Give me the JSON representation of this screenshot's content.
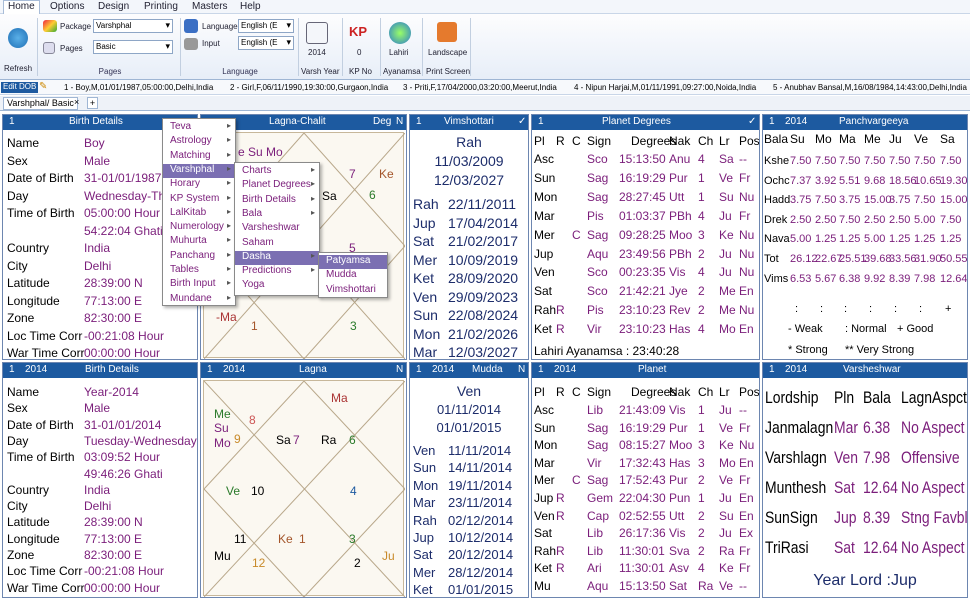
{
  "menu": {
    "items": [
      "Home",
      "Options",
      "Design",
      "Printing",
      "Masters",
      "Help"
    ]
  },
  "ribbon": {
    "refresh_label": "Refresh",
    "package_label": "Package",
    "package_value": "Varshphal",
    "pages_label": "Pages",
    "pages_value": "Basic",
    "pages_group": "Pages",
    "language_label": "Language",
    "language_value": "English (E",
    "input_label": "Input",
    "input_value": "English (E",
    "language_group": "Language",
    "year_value": "2014",
    "year_label": "Varsh Year",
    "kp_value": "0",
    "kp_label": "KP No",
    "ayanamsa_value": "Lahiri",
    "ayanamsa_label": "Ayanamsa",
    "landscape_label": "Landscape",
    "print_label": "Print Screen",
    "kp_icon_text": "KP"
  },
  "recent": {
    "edit_dob": "Edit DOB",
    "entries": [
      "1 - Boy,M,01/01/1987,05:00:00,Delhi,India",
      "2 - Girl,F,06/11/1990,19:30:00,Gurgaon,India",
      "3 - Priti,F,17/04/2000,03:20:00,Meerut,India",
      "4 - Nipun Harjai,M,01/11/1991,09:27:00,Noida,India",
      "5 - Anubhav Bansal,M,16/08/1984,14:43:00,Delhi,India"
    ]
  },
  "tabs": {
    "active": "Varshphal/ Basic",
    "close": "×",
    "add": "+"
  },
  "birth1": {
    "num": "1",
    "title": "Birth Details",
    "rows": [
      {
        "l": "Name",
        "v": "Boy"
      },
      {
        "l": "Sex",
        "v": "Male"
      },
      {
        "l": "Date of Birth",
        "v": "31-01/01/1987"
      },
      {
        "l": "Day",
        "v": "Wednesday-Th"
      },
      {
        "l": "Time of Birth",
        "v": "05:00:00 Hour"
      },
      {
        "l": "",
        "v": "54:22:04 Ghati"
      },
      {
        "l": "Country",
        "v": "India"
      },
      {
        "l": "City",
        "v": "Delhi"
      },
      {
        "l": "Latitude",
        "v": "28:39:00 N"
      },
      {
        "l": "Longitude",
        "v": "77:13:00 E"
      },
      {
        "l": "Zone",
        "v": "82:30:00 E"
      },
      {
        "l": "Loc Time Corr",
        "v": "-00:21:08 Hour"
      },
      {
        "l": "War Time Corr",
        "v": "00:00:00 Hour"
      }
    ]
  },
  "lagna_chalit": {
    "title": "Lagna-Chalit",
    "deg": "Deg",
    "n": "N",
    "planets_top": "e Su Mo",
    "h7": "7",
    "h6": "6",
    "ke": "Ke",
    "sa": "Sa",
    "h5": "5",
    "ma": "-Ma",
    "h1": "1",
    "h3": "3"
  },
  "vimshottari": {
    "num": "1",
    "title": "Vimshottari",
    "check": "✓",
    "head": "Rah",
    "from": "11/03/2009",
    "to": "12/03/2027",
    "rows": [
      [
        "Rah",
        "22/11/2011"
      ],
      [
        "Jup",
        "17/04/2014"
      ],
      [
        "Sat",
        "21/02/2017"
      ],
      [
        "Mer",
        "10/09/2019"
      ],
      [
        "Ket",
        "28/09/2020"
      ],
      [
        "Ven",
        "29/09/2023"
      ],
      [
        "Sun",
        "22/08/2024"
      ],
      [
        "Mon",
        "21/02/2026"
      ],
      [
        "Mar",
        "12/03/2027"
      ]
    ]
  },
  "planet_degrees": {
    "num": "1",
    "title": "Planet Degrees",
    "check": "✓",
    "headers": [
      "Pl",
      "R",
      "C",
      "Sign",
      "Degrees",
      "Nak",
      "Ch",
      "Lr",
      "Pos"
    ],
    "rows": [
      [
        "Asc",
        "",
        "",
        "Sco",
        "15:13:50",
        "Anu",
        "4",
        "Sa",
        "--"
      ],
      [
        "Sun",
        "",
        "",
        "Sag",
        "16:19:29",
        "Pur",
        "1",
        "Ve",
        "Fr"
      ],
      [
        "Mon",
        "",
        "",
        "Sag",
        "28:27:45",
        "Utt",
        "1",
        "Su",
        "Nu"
      ],
      [
        "Mar",
        "",
        "",
        "Pis",
        "01:03:37",
        "PBh",
        "4",
        "Ju",
        "Fr"
      ],
      [
        "Mer",
        "",
        "C",
        "Sag",
        "09:28:25",
        "Moo",
        "3",
        "Ke",
        "Nu"
      ],
      [
        "Jup",
        "",
        "",
        "Aqu",
        "23:49:56",
        "PBh",
        "2",
        "Ju",
        "Nu"
      ],
      [
        "Ven",
        "",
        "",
        "Sco",
        "00:23:35",
        "Vis",
        "4",
        "Ju",
        "Nu"
      ],
      [
        "Sat",
        "",
        "",
        "Sco",
        "21:42:21",
        "Jye",
        "2",
        "Me",
        "En"
      ],
      [
        "Rah",
        "R",
        "",
        "Pis",
        "23:10:23",
        "Rev",
        "2",
        "Me",
        "Nu"
      ],
      [
        "Ket",
        "R",
        "",
        "Vir",
        "23:10:23",
        "Has",
        "4",
        "Mo",
        "En"
      ]
    ],
    "footer": "Lahiri Ayanamsa : 23:40:28"
  },
  "panchvargeeya": {
    "num": "1",
    "year": "2014",
    "title": "Panchvargeeya",
    "headers": [
      "Bala",
      "Su",
      "Mo",
      "Ma",
      "Me",
      "Ju",
      "Ve",
      "Sa"
    ],
    "rows": [
      [
        "Kshe",
        "7.50",
        "7.50",
        "7.50",
        "7.50",
        "7.50",
        "7.50",
        "7.50"
      ],
      [
        "Ochc",
        "7.37",
        "3.92",
        "5.51",
        "9.68",
        "18.56",
        "10.65",
        "19.30"
      ],
      [
        "Hadd",
        "3.75",
        "7.50",
        "3.75",
        "15.00",
        "3.75",
        "7.50",
        "15.00"
      ],
      [
        "Drek",
        "2.50",
        "2.50",
        "7.50",
        "2.50",
        "2.50",
        "5.00",
        "7.50"
      ],
      [
        "Nava",
        "5.00",
        "1.25",
        "1.25",
        "5.00",
        "1.25",
        "1.25",
        "1.25"
      ],
      [
        "Tot",
        "26.12",
        "22.67",
        "25.51",
        "39.68",
        "33.56",
        "31.90",
        "50.55"
      ],
      [
        "Vims",
        "6.53",
        "5.67",
        "6.38",
        "9.92",
        "8.39",
        "7.98",
        "12.64"
      ]
    ],
    "marks": [
      ":",
      ":",
      ":",
      ":",
      ":",
      ":",
      "+"
    ],
    "legend1": "- Weak",
    "legend2": ": Normal",
    "legend3": "+ Good",
    "legend4": "* Strong",
    "legend5": "** Very Strong"
  },
  "birth2": {
    "num": "1",
    "year": "2014",
    "title": "Birth Details",
    "rows": [
      {
        "l": "Name",
        "v": "Year-2014"
      },
      {
        "l": "Sex",
        "v": "Male"
      },
      {
        "l": "Date of Birth",
        "v": "31-01/01/2014"
      },
      {
        "l": "Day",
        "v": "Tuesday-Wednesday"
      },
      {
        "l": "Time of Birth",
        "v": "03:09:52 Hour"
      },
      {
        "l": "",
        "v": "49:46:26 Ghati"
      },
      {
        "l": "Country",
        "v": "India"
      },
      {
        "l": "City",
        "v": "Delhi"
      },
      {
        "l": "Latitude",
        "v": "28:39:00 N"
      },
      {
        "l": "Longitude",
        "v": "77:13:00 E"
      },
      {
        "l": "Zone",
        "v": "82:30:00 E"
      },
      {
        "l": "Loc Time Corr",
        "v": "-00:21:08 Hour"
      },
      {
        "l": "War Time Corr",
        "v": "00:00:00 Hour"
      }
    ]
  },
  "lagna": {
    "num": "1",
    "year": "2014",
    "title": "Lagna",
    "n": "N",
    "ma": "Ma",
    "me": "Me",
    "su": "Su",
    "mo": "Mo",
    "h8": "8",
    "h9": "9",
    "h7": "7",
    "sa": "Sa",
    "ra": "Ra",
    "h6": "6",
    "ve": "Ve",
    "h10": "10",
    "h4": "4",
    "h11": "11",
    "h1": "1",
    "ke": "Ke",
    "h3": "3",
    "mu": "Mu",
    "h12": "12",
    "h2": "2",
    "ju": "Ju"
  },
  "mudda": {
    "num": "1",
    "year": "2014",
    "title": "Mudda",
    "n": "N",
    "head": "Ven",
    "from": "01/11/2014",
    "to": "01/01/2015",
    "rows": [
      [
        "Ven",
        "11/11/2014"
      ],
      [
        "Sun",
        "14/11/2014"
      ],
      [
        "Mon",
        "19/11/2014"
      ],
      [
        "Mar",
        "23/11/2014"
      ],
      [
        "Rah",
        "02/12/2014"
      ],
      [
        "Jup",
        "10/12/2014"
      ],
      [
        "Sat",
        "20/12/2014"
      ],
      [
        "Mer",
        "28/12/2014"
      ],
      [
        "Ket",
        "01/01/2015"
      ]
    ]
  },
  "planet2": {
    "num": "1",
    "year": "2014",
    "title": "Planet",
    "headers": [
      "Pl",
      "R",
      "C",
      "Sign",
      "Degrees",
      "Nak",
      "Ch",
      "Lr",
      "Pos"
    ],
    "rows": [
      [
        "Asc",
        "",
        "",
        "Lib",
        "21:43:09",
        "Vis",
        "1",
        "Ju",
        "--"
      ],
      [
        "Sun",
        "",
        "",
        "Sag",
        "16:19:29",
        "Pur",
        "1",
        "Ve",
        "Fr"
      ],
      [
        "Mon",
        "",
        "",
        "Sag",
        "08:15:27",
        "Moo",
        "3",
        "Ke",
        "Nu"
      ],
      [
        "Mar",
        "",
        "",
        "Vir",
        "17:32:43",
        "Has",
        "3",
        "Mo",
        "En"
      ],
      [
        "Mer",
        "",
        "C",
        "Sag",
        "17:52:43",
        "Pur",
        "2",
        "Ve",
        "Fr"
      ],
      [
        "Jup",
        "R",
        "",
        "Gem",
        "22:04:30",
        "Pun",
        "1",
        "Ju",
        "En"
      ],
      [
        "Ven",
        "R",
        "",
        "Cap",
        "02:52:55",
        "Utt",
        "2",
        "Su",
        "En"
      ],
      [
        "Sat",
        "",
        "",
        "Lib",
        "26:17:36",
        "Vis",
        "2",
        "Ju",
        "Ex"
      ],
      [
        "Rah",
        "R",
        "",
        "Lib",
        "11:30:01",
        "Sva",
        "2",
        "Ra",
        "Fr"
      ],
      [
        "Ket",
        "R",
        "",
        "Ari",
        "11:30:01",
        "Asv",
        "4",
        "Ke",
        "Fr"
      ],
      [
        "Mu",
        "",
        "",
        "Aqu",
        "15:13:50",
        "Sat",
        "Ra",
        "Ve",
        "--"
      ]
    ]
  },
  "varsheshwar": {
    "num": "1",
    "year": "2014",
    "title": "Varsheshwar",
    "headers": [
      "Lordship",
      "Pln",
      "Bala",
      "LagnAspct"
    ],
    "rows": [
      [
        "Janmalagn",
        "Mar",
        "6.38",
        "No Aspect"
      ],
      [
        "Varshlagn",
        "Ven",
        "7.98",
        "Offensive"
      ],
      [
        "Munthesh",
        "Sat",
        "12.64",
        "No Aspect"
      ],
      [
        "SunSign",
        "Jup",
        "8.39",
        "Stng Favbl"
      ],
      [
        "TriRasi",
        "Sat",
        "12.64",
        "No Aspect"
      ]
    ],
    "year_lord": "Year Lord :Jup"
  },
  "menu1": {
    "items": [
      "Teva",
      "Astrology",
      "Matching",
      "Varshphal",
      "Horary",
      "KP System",
      "LalKitab",
      "Numerology",
      "Muhurta",
      "Panchang",
      "Tables",
      "Birth Input",
      "Mundane"
    ]
  },
  "menu2": {
    "items": [
      "Charts",
      "Planet Degrees",
      "Birth Details",
      "Bala",
      "Varsheshwar",
      "Saham",
      "Dasha",
      "Predictions",
      "Yoga"
    ]
  },
  "menu3": {
    "items": [
      "Patyamsa",
      "Mudda",
      "Vimshottari"
    ]
  },
  "colors": {
    "header": "#1d5aa0",
    "value": "#7a1d7a",
    "highlight": "#7b6fb2",
    "chart_bg": "#fbf8f1"
  }
}
